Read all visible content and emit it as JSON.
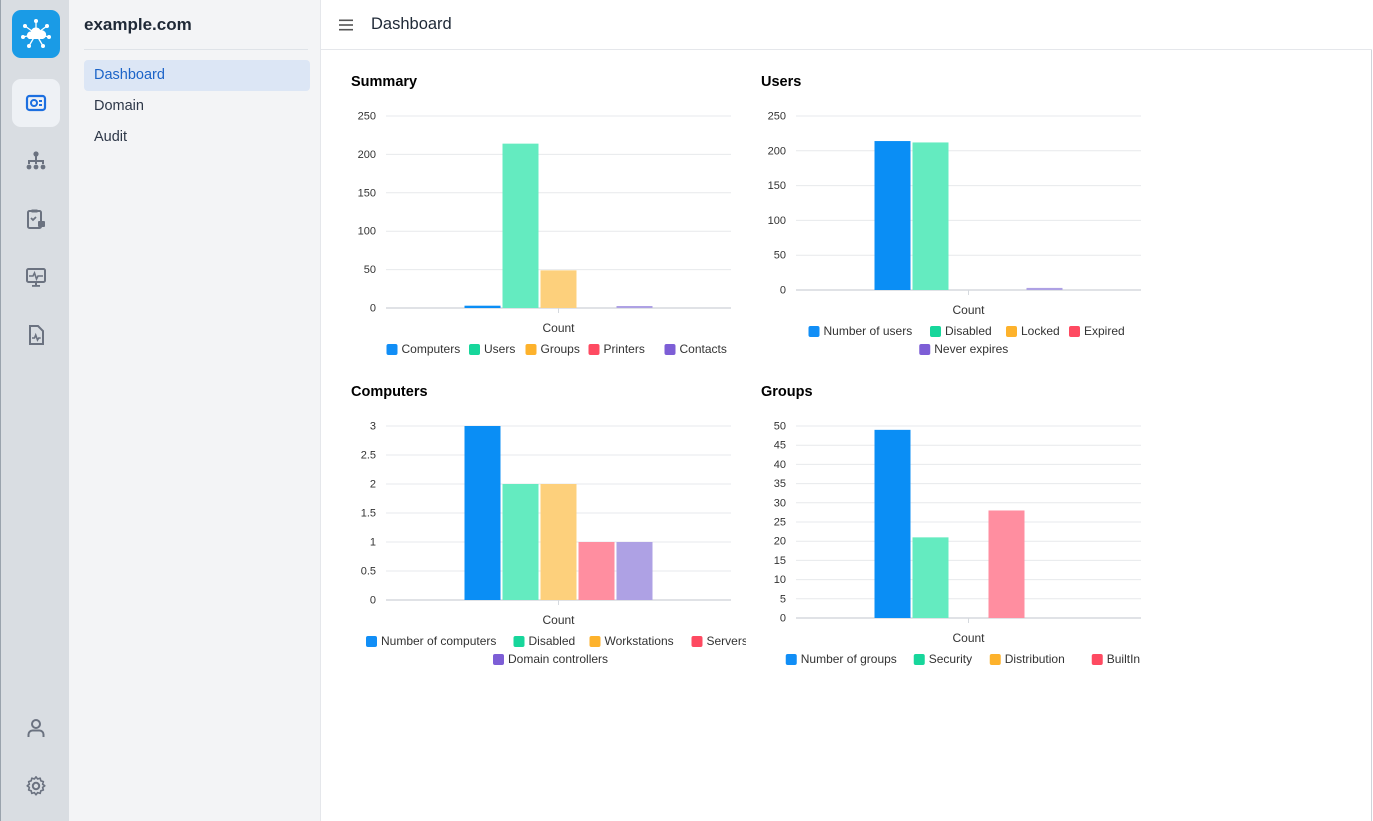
{
  "rail": {
    "logo_icon": "cloud-network-icon",
    "items": [
      {
        "icon": "dashboard-card-icon",
        "active": true
      },
      {
        "icon": "sitemap-icon",
        "active": false
      },
      {
        "icon": "clipboard-check-icon",
        "active": false
      },
      {
        "icon": "monitor-pulse-icon",
        "active": false
      },
      {
        "icon": "document-pulse-icon",
        "active": false
      }
    ],
    "bottom": [
      {
        "icon": "user-icon"
      },
      {
        "icon": "gear-icon"
      }
    ]
  },
  "sidebar": {
    "title": "example.com",
    "items": [
      {
        "label": "Dashboard",
        "active": true
      },
      {
        "label": "Domain",
        "active": false
      },
      {
        "label": "Audit",
        "active": false
      }
    ]
  },
  "header": {
    "menu_icon": "menu-icon",
    "title": "Dashboard"
  },
  "colors": {
    "blue": "#0a8ef5",
    "green": "#64ebc0",
    "orange": "#fdd07c",
    "red": "#ff8ea0",
    "purple": "#aea1e4",
    "legend_blue": "#118ef6",
    "legend_green": "#17d69b",
    "legend_orange": "#fdb22c",
    "legend_red": "#fe4a61",
    "legend_purple": "#7d5ed6"
  },
  "chart_data": [
    {
      "id": "summary",
      "title": "Summary",
      "type": "bar",
      "categories": [
        "Count"
      ],
      "ylim": [
        0,
        250
      ],
      "yticks": [
        0,
        50,
        100,
        150,
        200,
        250
      ],
      "legend_position": "bottom",
      "series": [
        {
          "name": "Computers",
          "values": [
            3
          ]
        },
        {
          "name": "Users",
          "values": [
            214
          ]
        },
        {
          "name": "Groups",
          "values": [
            49
          ]
        },
        {
          "name": "Printers",
          "values": [
            0
          ]
        },
        {
          "name": "Contacts",
          "values": [
            1
          ]
        }
      ]
    },
    {
      "id": "users",
      "title": "Users",
      "type": "bar",
      "categories": [
        "Count"
      ],
      "ylim": [
        0,
        250
      ],
      "yticks": [
        0,
        50,
        100,
        150,
        200,
        250
      ],
      "legend_position": "bottom",
      "series": [
        {
          "name": "Number of users",
          "values": [
            214
          ]
        },
        {
          "name": "Disabled",
          "values": [
            212
          ]
        },
        {
          "name": "Locked",
          "values": [
            0
          ]
        },
        {
          "name": "Expired",
          "values": [
            0
          ]
        },
        {
          "name": "Never expires",
          "values": [
            3
          ]
        }
      ]
    },
    {
      "id": "computers",
      "title": "Computers",
      "type": "bar",
      "categories": [
        "Count"
      ],
      "ylim": [
        0,
        3
      ],
      "yticks": [
        0,
        0.5,
        1,
        1.5,
        2,
        2.5,
        3
      ],
      "legend_position": "bottom",
      "series": [
        {
          "name": "Number of computers",
          "values": [
            3
          ]
        },
        {
          "name": "Disabled",
          "values": [
            2
          ]
        },
        {
          "name": "Workstations",
          "values": [
            2
          ]
        },
        {
          "name": "Servers",
          "values": [
            1
          ]
        },
        {
          "name": "Domain controllers",
          "values": [
            1
          ]
        }
      ]
    },
    {
      "id": "groups",
      "title": "Groups",
      "type": "bar",
      "categories": [
        "Count"
      ],
      "ylim": [
        0,
        50
      ],
      "yticks": [
        0,
        5,
        10,
        15,
        20,
        25,
        30,
        35,
        40,
        45,
        50
      ],
      "legend_position": "bottom",
      "series": [
        {
          "name": "Number of groups",
          "values": [
            49
          ]
        },
        {
          "name": "Security",
          "values": [
            21
          ]
        },
        {
          "name": "Distribution",
          "values": [
            0
          ]
        },
        {
          "name": "BuiltIn",
          "values": [
            28
          ]
        }
      ]
    }
  ]
}
